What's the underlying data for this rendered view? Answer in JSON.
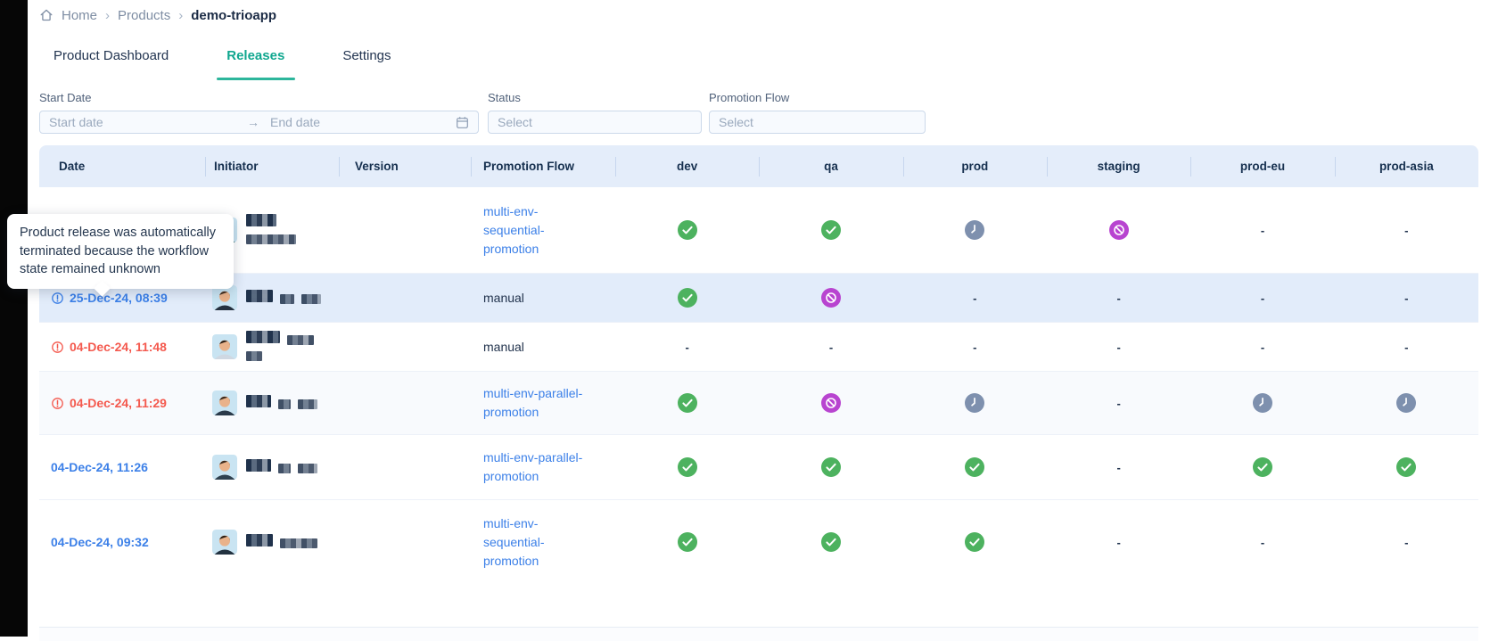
{
  "breadcrumb": {
    "items": [
      {
        "label": "Home"
      },
      {
        "label": "Products"
      }
    ],
    "current": "demo-trioapp"
  },
  "tabs": [
    {
      "label": "Product Dashboard",
      "active": false
    },
    {
      "label": "Releases",
      "active": true
    },
    {
      "label": "Settings",
      "active": false
    }
  ],
  "filters": {
    "start_date": {
      "label": "Start Date",
      "start_placeholder": "Start date",
      "end_placeholder": "End date"
    },
    "status": {
      "label": "Status",
      "placeholder": "Select"
    },
    "promotion_flow": {
      "label": "Promotion Flow",
      "placeholder": "Select"
    }
  },
  "tooltip": {
    "text": "Product release was automatically terminated because the workflow state remained unknown"
  },
  "table": {
    "columns": [
      "Date",
      "Initiator",
      "Version",
      "Promotion Flow",
      "dev",
      "qa",
      "prod",
      "staging",
      "prod-eu",
      "prod-asia"
    ],
    "rows": [
      {
        "date": "",
        "date_state": "none",
        "highlighted": false,
        "initiator_redacted": true,
        "version": "",
        "promotion_flow": "multi-env-sequential-promotion",
        "promotion_flow_is_link": true,
        "envs": [
          "success",
          "success",
          "pending",
          "terminated",
          "none",
          "none"
        ]
      },
      {
        "date": "25-Dec-24, 08:39",
        "date_state": "info",
        "highlighted": true,
        "initiator_redacted": true,
        "version": "",
        "promotion_flow": "manual",
        "promotion_flow_is_link": false,
        "envs": [
          "success",
          "terminated",
          "none",
          "none",
          "none",
          "none"
        ]
      },
      {
        "date": "04-Dec-24, 11:48",
        "date_state": "error",
        "highlighted": false,
        "initiator_redacted": true,
        "version": "",
        "promotion_flow": "manual",
        "promotion_flow_is_link": false,
        "envs": [
          "none",
          "none",
          "none",
          "none",
          "none",
          "none"
        ]
      },
      {
        "date": "04-Dec-24, 11:29",
        "date_state": "error",
        "highlighted": false,
        "initiator_redacted": true,
        "version": "",
        "promotion_flow": "multi-env-parallel-promotion",
        "promotion_flow_is_link": true,
        "envs": [
          "success",
          "terminated",
          "pending",
          "none",
          "pending",
          "pending"
        ]
      },
      {
        "date": "04-Dec-24, 11:26",
        "date_state": "plain",
        "highlighted": false,
        "initiator_redacted": true,
        "version": "",
        "promotion_flow": "multi-env-parallel-promotion",
        "promotion_flow_is_link": true,
        "envs": [
          "success",
          "success",
          "success",
          "none",
          "success",
          "success"
        ]
      },
      {
        "date": "04-Dec-24, 09:32",
        "date_state": "plain",
        "highlighted": false,
        "initiator_redacted": true,
        "version": "",
        "promotion_flow": "multi-env-sequential-promotion",
        "promotion_flow_is_link": true,
        "envs": [
          "success",
          "success",
          "success",
          "none",
          "none",
          "none"
        ]
      }
    ]
  },
  "colors": {
    "accent_teal": "#2db69c",
    "active_tab_text": "#10a78f",
    "link_blue": "#3c80e8",
    "error_red": "#f4594e",
    "success_green": "#4db25f",
    "pending_slate": "#7e90ae",
    "terminated_purple": "#b844d0",
    "header_bg": "#e4edfa",
    "highlighted_row_bg": "#e2ecfa"
  }
}
